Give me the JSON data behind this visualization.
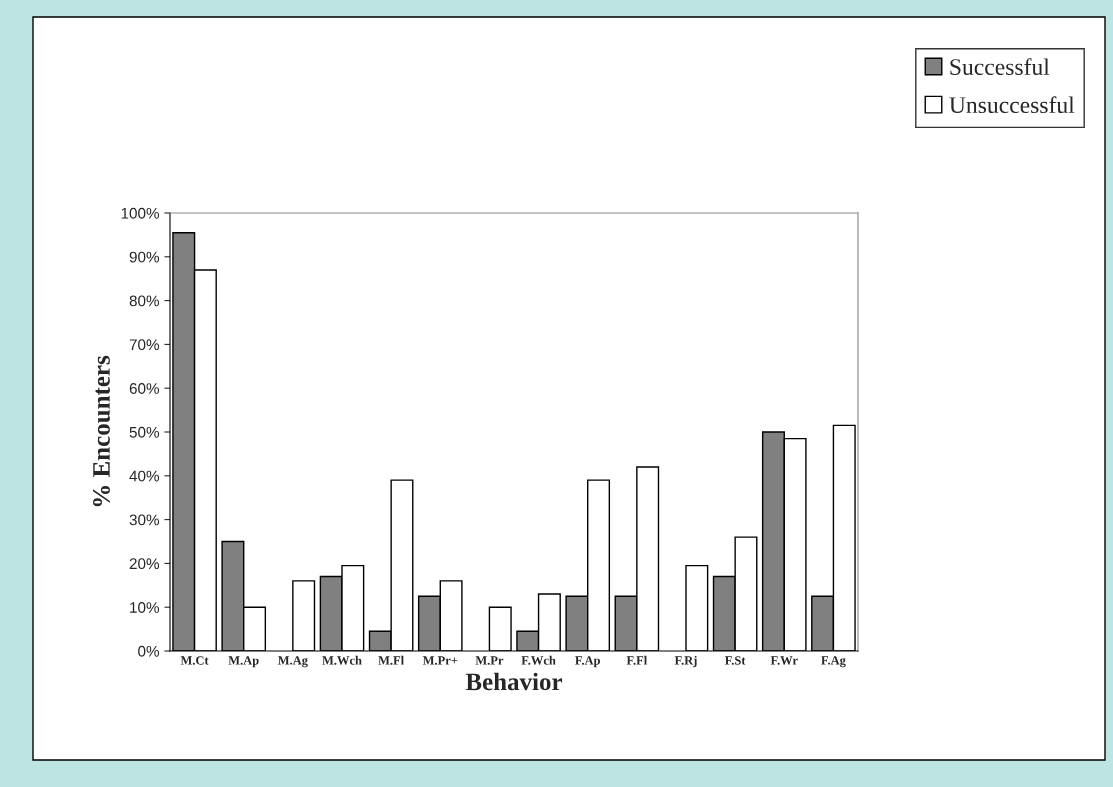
{
  "chart_data": {
    "type": "bar",
    "xlabel": "Behavior",
    "ylabel": "% Encounters",
    "categories": [
      "M.Ct",
      "M.Ap",
      "M.Ag",
      "M.Wch",
      "M.Fl",
      "M.Pr+",
      "M.Pr",
      "F.Wch",
      "F.Ap",
      "F.Fl",
      "F.Rj",
      "F.St",
      "F.Wr",
      "F.Ag"
    ],
    "series": [
      {
        "name": "Successful",
        "color": "#808080",
        "values": [
          95.5,
          25,
          0,
          17,
          4.5,
          12.5,
          0,
          4.5,
          12.5,
          12.5,
          0,
          17,
          50,
          12.5
        ]
      },
      {
        "name": "Unsuccessful",
        "color": "#ffffff",
        "values": [
          87,
          10,
          16,
          19.5,
          39,
          16,
          10,
          13,
          39,
          42,
          19.5,
          26,
          48.5,
          51.5
        ]
      }
    ],
    "ylim": [
      0,
      100
    ],
    "yticks": [
      {
        "value": 0,
        "label": "0%"
      },
      {
        "value": 10,
        "label": "10%"
      },
      {
        "value": 20,
        "label": "20%"
      },
      {
        "value": 30,
        "label": "30%"
      },
      {
        "value": 40,
        "label": "40%"
      },
      {
        "value": 50,
        "label": "50%"
      },
      {
        "value": 60,
        "label": "60%"
      },
      {
        "value": 70,
        "label": "70%"
      },
      {
        "value": 80,
        "label": "80%"
      },
      {
        "value": 90,
        "label": "90%"
      },
      {
        "value": 100,
        "label": "100%"
      }
    ],
    "grid": false,
    "legend": "top right"
  }
}
